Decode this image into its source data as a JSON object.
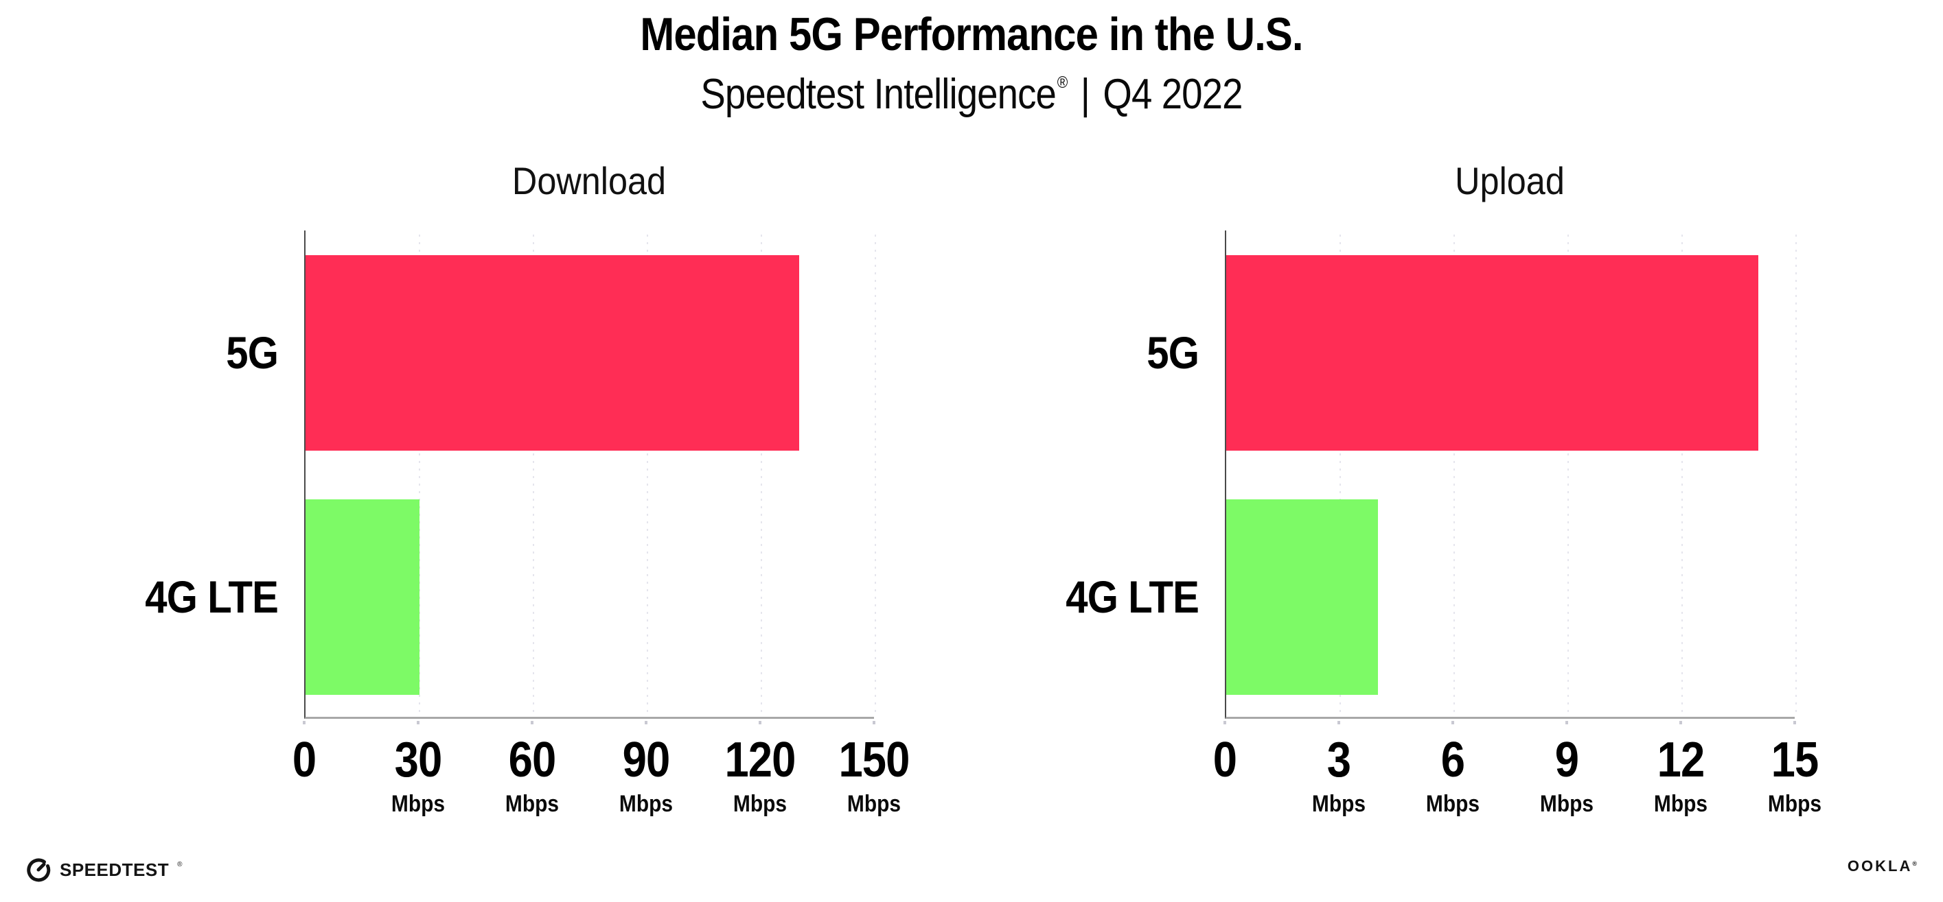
{
  "header": {
    "title": "Median 5G Performance in the U.S.",
    "subtitle_brand": "Speedtest Intelligence",
    "subtitle_reg": "®",
    "subtitle_separator": "|",
    "subtitle_period": "Q4 2022"
  },
  "footer": {
    "speedtest_logo_text": "SPEEDTEST",
    "speedtest_reg": "®",
    "ookla_logo_text": "OOKLA",
    "ookla_reg": "®"
  },
  "colors": {
    "bar_5g": "#FF2D55",
    "bar_4g_lte": "#7DFA66",
    "gridline": "#E5E5ED",
    "axis_line": "#A8A8A8",
    "axis_spine": "#4A4A4A",
    "text": "#000000"
  },
  "chart_data": [
    {
      "type": "bar",
      "orientation": "horizontal",
      "title": "Download",
      "categories": [
        "5G",
        "4G LTE"
      ],
      "values": [
        130,
        30
      ],
      "unit": "Mbps",
      "xlim": [
        0,
        150
      ],
      "xticks": [
        0,
        30,
        60,
        90,
        120,
        150
      ],
      "tick_unit_label": "Mbps",
      "bar_colors": [
        "#FF2D55",
        "#7DFA66"
      ],
      "grid": "dotted-vertical",
      "legend": "none"
    },
    {
      "type": "bar",
      "orientation": "horizontal",
      "title": "Upload",
      "categories": [
        "5G",
        "4G LTE"
      ],
      "values": [
        14,
        4
      ],
      "unit": "Mbps",
      "xlim": [
        0,
        15
      ],
      "xticks": [
        0,
        3,
        6,
        9,
        12,
        15
      ],
      "tick_unit_label": "Mbps",
      "bar_colors": [
        "#FF2D55",
        "#7DFA66"
      ],
      "grid": "dotted-vertical",
      "legend": "none"
    }
  ]
}
